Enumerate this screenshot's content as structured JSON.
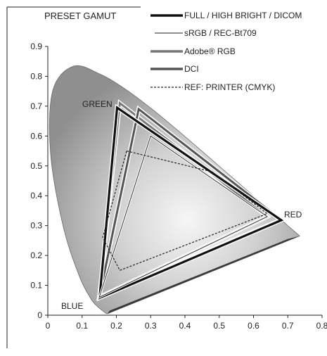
{
  "chart_data": {
    "type": "line",
    "title": "PRESET GAMUT",
    "xlabel": "",
    "ylabel": "",
    "xlim": [
      0,
      0.8
    ],
    "ylim": [
      0,
      0.9
    ],
    "xticks": [
      "0",
      "0.1",
      "0.2",
      "0.3",
      "0.4",
      "0.5",
      "0.6",
      "0.7",
      "0.8"
    ],
    "yticks": [
      "0",
      "0.1",
      "0.2",
      "0.3",
      "0.4",
      "0.5",
      "0.6",
      "0.7",
      "0.8",
      "0.9"
    ],
    "grid": false,
    "legend_position": "top-right",
    "annotations": [
      "GREEN",
      "RED",
      "BLUE"
    ],
    "locus": {
      "x": [
        0.1741,
        0.1738,
        0.1714,
        0.1644,
        0.144,
        0.1241,
        0.0913,
        0.0454,
        0.0082,
        0.0139,
        0.0743,
        0.1547,
        0.2296,
        0.3016,
        0.3731,
        0.4441,
        0.5125,
        0.5752,
        0.627,
        0.6658,
        0.6915,
        0.7079,
        0.7347
      ],
      "y": [
        0.005,
        0.0049,
        0.0051,
        0.0109,
        0.0297,
        0.0578,
        0.1327,
        0.295,
        0.5384,
        0.7502,
        0.8338,
        0.8059,
        0.7543,
        0.6923,
        0.6245,
        0.5547,
        0.4866,
        0.4242,
        0.3725,
        0.334,
        0.3083,
        0.292,
        0.2653
      ]
    },
    "series": [
      {
        "name": "FULL / HIGH BRIGHT / DICOM",
        "x": [
          0.681,
          0.202,
          0.151
        ],
        "y": [
          0.318,
          0.695,
          0.058
        ],
        "style": "thick-black"
      },
      {
        "name": "sRGB / REC-Bt709",
        "x": [
          0.64,
          0.3,
          0.15
        ],
        "y": [
          0.33,
          0.6,
          0.06
        ],
        "style": "thin-black"
      },
      {
        "name": "Adobe® RGB",
        "x": [
          0.64,
          0.21,
          0.15
        ],
        "y": [
          0.33,
          0.71,
          0.06
        ],
        "style": "thick-grey"
      },
      {
        "name": "DCI",
        "x": [
          0.68,
          0.265,
          0.15
        ],
        "y": [
          0.32,
          0.69,
          0.06
        ],
        "style": "thick-darkgrey"
      },
      {
        "name": "REF: PRINTER (CMYK)",
        "x": [
          0.23,
          0.48,
          0.64,
          0.21,
          0.16,
          0.23
        ],
        "y": [
          0.55,
          0.48,
          0.34,
          0.15,
          0.26,
          0.55
        ],
        "style": "dashed"
      }
    ],
    "colors": {
      "locus_fill": "#b9b9b9",
      "locus_center": "#f4f4f4",
      "locus_edge": "#6a6a6a",
      "frame": "#222222"
    }
  }
}
